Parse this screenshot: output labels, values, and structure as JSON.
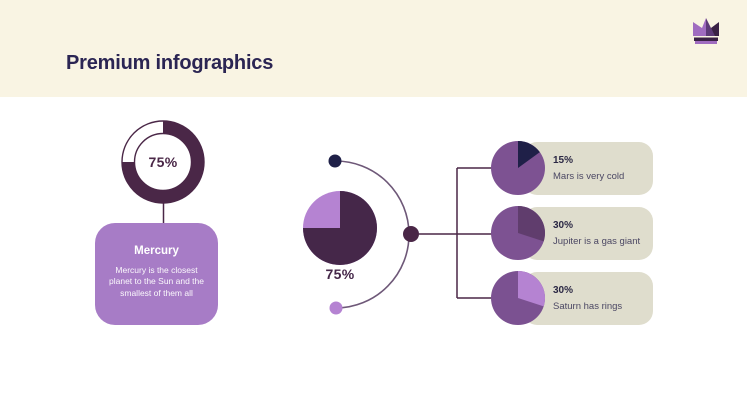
{
  "header": {
    "title": "Premium infographics"
  },
  "colors": {
    "header_bg": "#f9f4e3",
    "title": "#2b2553",
    "dark_plum": "#4a2747",
    "navy": "#1f2048",
    "purple_mid": "#7d5292",
    "purple_light": "#b583d2",
    "pie_dark": "#452749",
    "mercury_box": "#a77cc6",
    "card_bg": "#dfddcd",
    "card_percent": "#2b2844",
    "card_desc": "#4b4763",
    "arc": "#6e5878",
    "line": "#4a2747",
    "crown_light": "#a06cc0",
    "crown_mid": "#5d3a78",
    "crown_dark": "#3a2145"
  },
  "mercury": {
    "title": "Mercury",
    "description": "Mercury is the closest planet to the Sun and the smallest of them all"
  },
  "chart_data": [
    {
      "type": "pie",
      "variant": "donut",
      "name": "mercury-donut",
      "percent": 75,
      "display": "75%",
      "slice_color": "#4a2747",
      "base_color": "#ffffff",
      "outline_color": "#4a2747",
      "linked_label": "Mercury"
    },
    {
      "type": "pie",
      "variant": "pie",
      "name": "center-pie",
      "percent": 75,
      "display": "75%",
      "slice_color": "#452749",
      "base_color": "#b583d2"
    },
    {
      "type": "pie",
      "variant": "pie",
      "name": "mars-pie",
      "percent": 15,
      "display": "15%",
      "slice_color": "#1f2048",
      "base_color": "#7d5292",
      "label": "Mars is very cold"
    },
    {
      "type": "pie",
      "variant": "pie",
      "name": "jupiter-pie",
      "percent": 30,
      "display": "30%",
      "slice_color": "#603d6d",
      "base_color": "#7d5292",
      "label": "Jupiter is a gas giant"
    },
    {
      "type": "pie",
      "variant": "pie",
      "name": "saturn-pie",
      "percent": 30,
      "display": "30%",
      "slice_color": "#b583d2",
      "base_color": "#7b5191",
      "label": "Saturn has rings"
    }
  ]
}
